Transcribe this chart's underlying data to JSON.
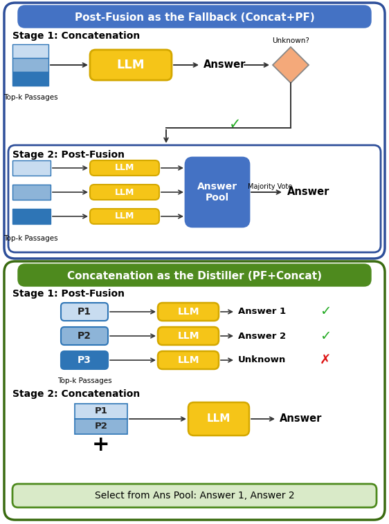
{
  "top_section": {
    "title": "Post-Fusion as the Fallback (Concat+PF)",
    "title_bg": "#4472C4",
    "border_color": "#2E4F9A",
    "stage1_label": "Stage 1: Concatenation",
    "stage2_label": "Stage 2: Post-Fusion",
    "topk_label": "Top-k Passages",
    "majority_vote": "Majority Vote",
    "answer_pool": "Answer\nPool",
    "answer_label": "Answer",
    "unknown_label": "Unknown?"
  },
  "bottom_section": {
    "title": "Concatenation as the Distiller (PF+Concat)",
    "title_bg": "#4E8A1E",
    "border_color": "#3A6B10",
    "stage1_label": "Stage 1: Post-Fusion",
    "stage2_label": "Stage 2: Concatenation",
    "topk_label": "Top-k Passages",
    "select_label": "Select from Ans Pool: Answer 1, Answer 2",
    "answer1": "Answer 1",
    "answer2": "Answer 2",
    "unknown": "Unknown",
    "answer_label": "Answer"
  },
  "colors": {
    "llm_bg": "#F5C518",
    "llm_border": "#D4A800",
    "answer_pool_bg": "#4472C4",
    "passage_light": "#C8DCF0",
    "passage_mid": "#8DB4D8",
    "passage_dark": "#2E75B6",
    "passage_border": "#2E75B6",
    "diamond_bg": "#F4A97A",
    "diamond_border": "#888888",
    "green_check": "#22AA22",
    "red_x": "#DD1111",
    "arrow": "#333333",
    "select_bg": "#D9EAC8",
    "select_border": "#4E8A1E"
  }
}
